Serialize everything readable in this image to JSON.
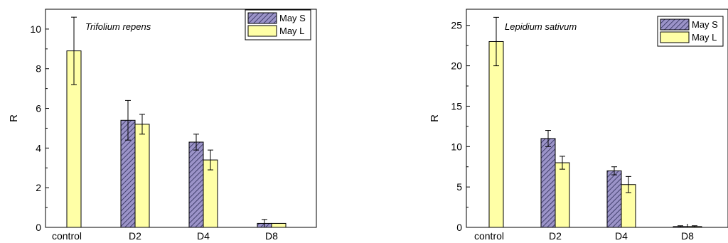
{
  "chart_data": [
    {
      "type": "bar",
      "title": "Trifolium repens",
      "xlabel": "",
      "ylabel": "R",
      "categories": [
        "control",
        "D2",
        "D4",
        "D8"
      ],
      "ylim": [
        0,
        11
      ],
      "yticks": [
        0,
        2,
        4,
        6,
        8,
        10
      ],
      "legend_position": "top-right",
      "series": [
        {
          "name": "May S",
          "pattern": "hatched",
          "color": "#9b93c8",
          "values": [
            null,
            5.4,
            4.3,
            0.2
          ],
          "errors": [
            null,
            1.0,
            0.4,
            0.2
          ]
        },
        {
          "name": "May L",
          "pattern": "solid",
          "color": "#ffffa6",
          "values": [
            8.9,
            5.2,
            3.4,
            0.2
          ],
          "errors": [
            1.7,
            0.5,
            0.5,
            0.0
          ]
        }
      ]
    },
    {
      "type": "bar",
      "title": "Lepidium sativum",
      "xlabel": "",
      "ylabel": "R",
      "categories": [
        "control",
        "D2",
        "D4",
        "D8"
      ],
      "ylim": [
        0,
        27
      ],
      "yticks": [
        0,
        5,
        10,
        15,
        20,
        25
      ],
      "legend_position": "top-right",
      "series": [
        {
          "name": "May S",
          "pattern": "hatched",
          "color": "#9b93c8",
          "values": [
            null,
            11.0,
            7.0,
            0.1
          ],
          "errors": [
            null,
            1.0,
            0.5,
            0.1
          ]
        },
        {
          "name": "May L",
          "pattern": "solid",
          "color": "#ffffa6",
          "values": [
            23.0,
            8.0,
            5.3,
            0.1
          ],
          "errors": [
            3.0,
            0.8,
            1.0,
            0.1
          ]
        }
      ]
    }
  ]
}
